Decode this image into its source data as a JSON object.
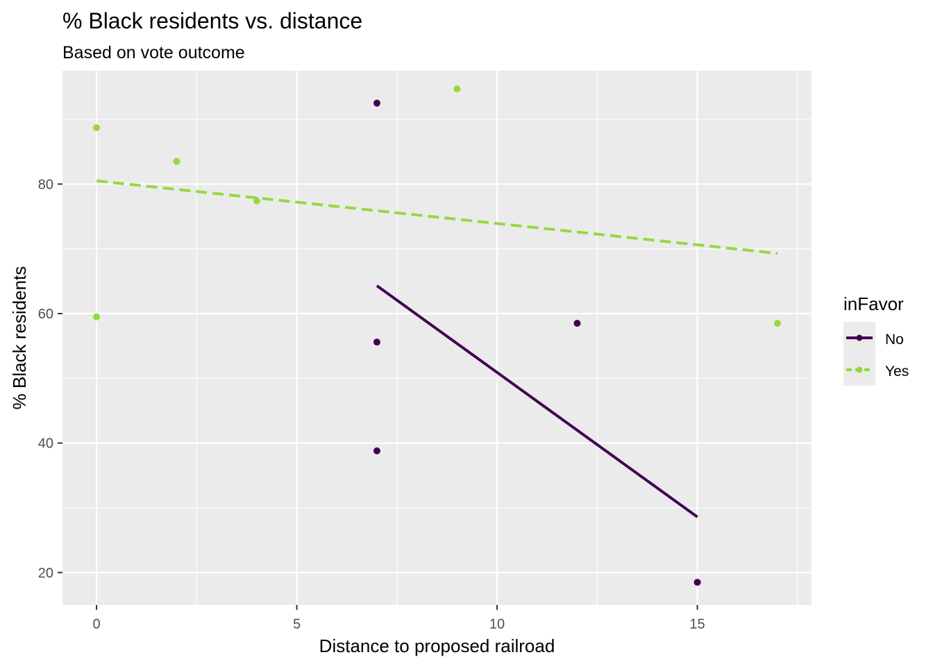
{
  "chart_data": {
    "type": "scatter",
    "title": "% Black residents vs. distance",
    "subtitle": "Based on vote outcome",
    "xlabel": "Distance to proposed railroad",
    "ylabel": "% Black residents",
    "xlim": [
      -0.85,
      17.85
    ],
    "ylim": [
      15,
      97.5
    ],
    "x_ticks": [
      0,
      5,
      10,
      15
    ],
    "y_ticks": [
      20,
      40,
      60,
      80
    ],
    "grid": true,
    "legend": {
      "title": "inFavor",
      "position": "right",
      "entries": [
        "No",
        "Yes"
      ]
    },
    "series": [
      {
        "name": "No",
        "color": "#440154",
        "line_style": "solid",
        "points": [
          {
            "x": 7,
            "y": 92.5
          },
          {
            "x": 7,
            "y": 55.6
          },
          {
            "x": 7,
            "y": 38.8
          },
          {
            "x": 12,
            "y": 58.5
          },
          {
            "x": 15,
            "y": 18.5
          }
        ],
        "trend": [
          {
            "x": 7,
            "y": 64.3
          },
          {
            "x": 15,
            "y": 28.6
          }
        ]
      },
      {
        "name": "Yes",
        "color": "#95D840",
        "line_style": "dashed",
        "points": [
          {
            "x": 0,
            "y": 88.7
          },
          {
            "x": 0,
            "y": 59.5
          },
          {
            "x": 2,
            "y": 83.5
          },
          {
            "x": 4,
            "y": 77.4
          },
          {
            "x": 9,
            "y": 94.7
          },
          {
            "x": 17,
            "y": 58.5
          }
        ],
        "trend": [
          {
            "x": 0,
            "y": 80.5
          },
          {
            "x": 17,
            "y": 69.3
          }
        ]
      }
    ]
  }
}
